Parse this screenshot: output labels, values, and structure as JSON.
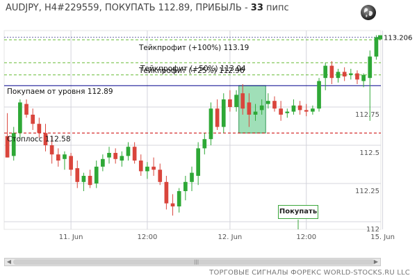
{
  "header": {
    "title_prefix": "AUDJPY, H4#229559, ПОКУПАТЬ 112.89, ПРИБЫЛЬ - ",
    "profit_pips": "33",
    "title_suffix": " пипс"
  },
  "icons": {
    "globe": "globe-icon"
  },
  "buy_button": {
    "label": "Покупать"
  },
  "footer": {
    "text": "ТОРГОВЫЕ СИГНАЛЫ ФОРЕКС WORLD-STOCKS.RU LLC"
  },
  "colors": {
    "bull": "#2ea836",
    "bear": "#d9453c",
    "entry": "#00008b",
    "stop": "#cc0000",
    "take": "#66bb33",
    "zone": "#80d4a0"
  },
  "chart_data": {
    "type": "candlestick",
    "instrument": "AUDJPY",
    "timeframe": "H4",
    "ylim": [
      111.95,
      113.25
    ],
    "y_ticks": [
      112,
      112.25,
      112.5,
      112.75
    ],
    "y_tick_labels": [
      "112",
      "112.25",
      "112.5",
      "112.75"
    ],
    "current_price": 113.206,
    "current_price_label": "113.206",
    "x_labels": [
      {
        "index": 10,
        "label": "11. Jun"
      },
      {
        "index": 22,
        "label": "12:00"
      },
      {
        "index": 35,
        "label": "12. Jun"
      },
      {
        "index": 47,
        "label": "12:00"
      },
      {
        "index": 59,
        "label": "15. Jun"
      }
    ],
    "levels": [
      {
        "name": "entry",
        "label": "Покупаем от уровня 112.89",
        "value": 112.89,
        "style": "solid"
      },
      {
        "name": "stoploss",
        "label": "Стоплосс 112.58",
        "value": 112.58,
        "style": "dashed"
      },
      {
        "name": "tp25",
        "label": "Тейкпрофит (+25%) 112.96",
        "value": 112.96,
        "style": "dashed"
      },
      {
        "name": "tp50",
        "label": "Тейкпрофит (+50%) 113.04",
        "value": 113.04,
        "style": "dashed"
      },
      {
        "name": "tp100",
        "label": "Тейкпрофит (+100%) 113.19",
        "value": 113.19,
        "style": "dashed"
      }
    ],
    "entry_zone": {
      "from_index": 37,
      "to_index": 40,
      "low": 112.58,
      "high": 112.89
    },
    "ohlc": [
      [
        112.56,
        112.71,
        112.42,
        112.42
      ],
      [
        112.43,
        112.62,
        112.4,
        112.58
      ],
      [
        112.58,
        112.8,
        112.54,
        112.78
      ],
      [
        112.77,
        112.8,
        112.68,
        112.7
      ],
      [
        112.7,
        112.74,
        112.6,
        112.64
      ],
      [
        112.64,
        112.68,
        112.55,
        112.58
      ],
      [
        112.58,
        112.64,
        112.46,
        112.5
      ],
      [
        112.5,
        112.56,
        112.38,
        112.44
      ],
      [
        112.44,
        112.48,
        112.36,
        112.4
      ],
      [
        112.41,
        112.46,
        112.34,
        112.44
      ],
      [
        112.43,
        112.45,
        112.3,
        112.34
      ],
      [
        112.35,
        112.4,
        112.22,
        112.26
      ],
      [
        112.26,
        112.32,
        112.2,
        112.3
      ],
      [
        112.3,
        112.34,
        112.22,
        112.24
      ],
      [
        112.25,
        112.4,
        112.22,
        112.36
      ],
      [
        112.36,
        112.44,
        112.33,
        112.41
      ],
      [
        112.42,
        112.49,
        112.38,
        112.45
      ],
      [
        112.45,
        112.48,
        112.38,
        112.41
      ],
      [
        112.4,
        112.46,
        112.36,
        112.43
      ],
      [
        112.43,
        112.52,
        112.4,
        112.49
      ],
      [
        112.49,
        112.52,
        112.38,
        112.4
      ],
      [
        112.4,
        112.44,
        112.3,
        112.33
      ],
      [
        112.33,
        112.39,
        112.28,
        112.36
      ],
      [
        112.36,
        112.42,
        112.3,
        112.34
      ],
      [
        112.34,
        112.38,
        112.24,
        112.26
      ],
      [
        112.26,
        112.3,
        112.08,
        112.12
      ],
      [
        112.12,
        112.18,
        112.04,
        112.1
      ],
      [
        112.1,
        112.22,
        112.06,
        112.2
      ],
      [
        112.2,
        112.3,
        112.14,
        112.26
      ],
      [
        112.26,
        112.36,
        112.2,
        112.32
      ],
      [
        112.3,
        112.52,
        112.24,
        112.48
      ],
      [
        112.48,
        112.58,
        112.44,
        112.54
      ],
      [
        112.54,
        112.78,
        112.5,
        112.74
      ],
      [
        112.74,
        112.8,
        112.6,
        112.62
      ],
      [
        112.62,
        112.84,
        112.58,
        112.8
      ],
      [
        112.8,
        112.86,
        112.72,
        112.75
      ],
      [
        112.75,
        112.86,
        112.72,
        112.83
      ],
      [
        112.84,
        112.9,
        112.7,
        112.74
      ],
      [
        112.78,
        112.84,
        112.62,
        112.7
      ],
      [
        112.7,
        112.77,
        112.66,
        112.72
      ],
      [
        112.73,
        112.8,
        112.7,
        112.76
      ],
      [
        112.77,
        112.84,
        112.74,
        112.79
      ],
      [
        112.79,
        112.82,
        112.72,
        112.74
      ],
      [
        112.74,
        112.79,
        112.66,
        112.7
      ],
      [
        112.71,
        112.74,
        112.68,
        112.72
      ],
      [
        112.72,
        112.8,
        112.7,
        112.76
      ],
      [
        112.76,
        112.79,
        112.7,
        112.73
      ],
      [
        112.73,
        112.77,
        112.69,
        112.72
      ],
      [
        112.72,
        112.76,
        112.7,
        112.74
      ],
      [
        112.74,
        112.94,
        112.72,
        112.92
      ],
      [
        112.94,
        113.04,
        112.86,
        113.02
      ],
      [
        113.02,
        113.05,
        112.9,
        112.94
      ],
      [
        112.94,
        113.0,
        112.91,
        112.98
      ],
      [
        112.98,
        113.01,
        112.92,
        112.95
      ],
      [
        112.96,
        113.0,
        112.93,
        112.97
      ],
      [
        112.97,
        112.99,
        112.9,
        112.93
      ],
      [
        112.92,
        112.97,
        112.88,
        112.96
      ],
      [
        112.94,
        113.12,
        112.66,
        113.08
      ],
      [
        113.08,
        113.22,
        113.06,
        113.206
      ]
    ]
  }
}
